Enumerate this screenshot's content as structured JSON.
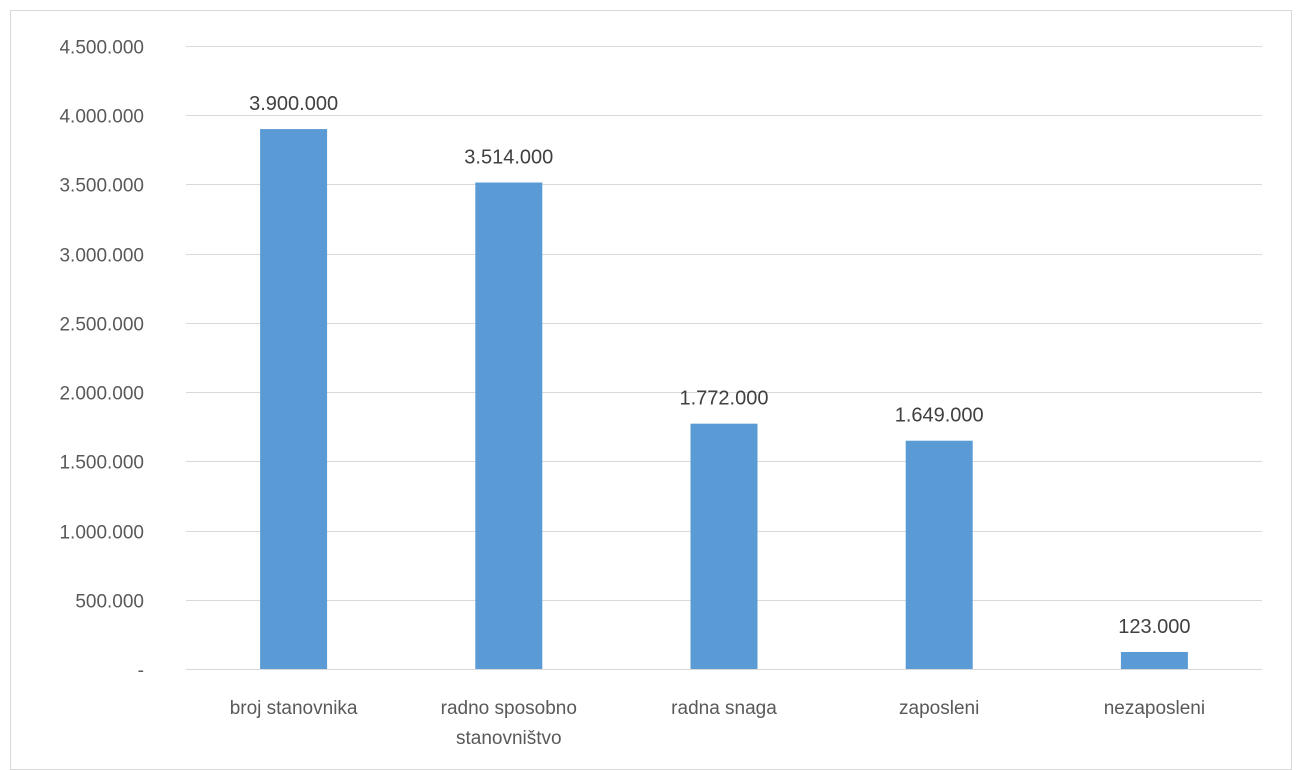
{
  "chart_data": {
    "type": "bar",
    "title": "",
    "xlabel": "",
    "ylabel": "",
    "categories": [
      [
        "broj stanovnika"
      ],
      [
        "radno sposobno",
        "stanovništvo"
      ],
      [
        "radna snaga"
      ],
      [
        "zaposleni"
      ],
      [
        "nezaposleni"
      ]
    ],
    "values": [
      3900000,
      3514000,
      1772000,
      1649000,
      123000
    ],
    "data_labels": [
      "3.900.000",
      "3.514.000",
      "1.772.000",
      "1.649.000",
      "123.000"
    ],
    "ylim": [
      0,
      4500000
    ],
    "yticks": [
      0,
      500000,
      1000000,
      1500000,
      2000000,
      2500000,
      3000000,
      3500000,
      4000000,
      4500000
    ],
    "ytick_labels": [
      "-",
      "500.000",
      "1.000.000",
      "1.500.000",
      "2.000.000",
      "2.500.000",
      "3.000.000",
      "3.500.000",
      "4.000.000",
      "4.500.000"
    ],
    "grid": true,
    "legend": "none",
    "bar_color": "#5b9bd5",
    "grid_color": "#d9d9d9"
  }
}
